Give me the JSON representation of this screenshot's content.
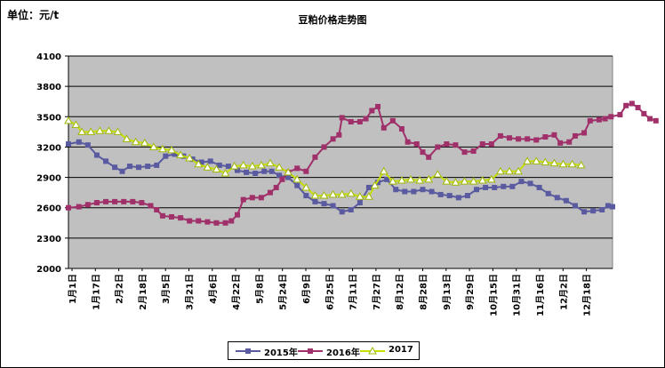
{
  "header": {
    "unit_label": "单位：元/t"
  },
  "chart_data": {
    "type": "line",
    "title": "豆粕价格走势图",
    "xlabel": "",
    "ylabel": "",
    "ylim": [
      2000,
      4100
    ],
    "yticks": [
      2000,
      2300,
      2600,
      2900,
      3200,
      3500,
      3800,
      4100
    ],
    "grid": "horizontal",
    "background": "#c0c0c0",
    "legend_position": "bottom",
    "x_labels": [
      "1月1日",
      "1月17日",
      "2月2日",
      "2月18日",
      "3月5日",
      "3月21日",
      "4月6日",
      "4月22日",
      "5月8日",
      "5月24日",
      "6月9日",
      "6月25日",
      "7月11日",
      "7月27日",
      "8月12日",
      "8月28日",
      "9月13日",
      "9月29日",
      "10月15日",
      "10月31日",
      "11月16日",
      "12月2日",
      "12月18日"
    ],
    "day_range": [
      1,
      365
    ],
    "series": [
      {
        "name": "2015年",
        "color": "#5a5aa0",
        "marker": "square",
        "points": [
          [
            1,
            3230
          ],
          [
            8,
            3250
          ],
          [
            14,
            3220
          ],
          [
            20,
            3120
          ],
          [
            26,
            3060
          ],
          [
            32,
            3000
          ],
          [
            37,
            2960
          ],
          [
            42,
            3010
          ],
          [
            48,
            3000
          ],
          [
            54,
            3010
          ],
          [
            60,
            3020
          ],
          [
            66,
            3110
          ],
          [
            72,
            3130
          ],
          [
            78,
            3110
          ],
          [
            84,
            3080
          ],
          [
            90,
            3050
          ],
          [
            96,
            3060
          ],
          [
            102,
            3020
          ],
          [
            108,
            3010
          ],
          [
            114,
            2970
          ],
          [
            120,
            2950
          ],
          [
            126,
            2940
          ],
          [
            132,
            2960
          ],
          [
            137,
            2960
          ],
          [
            142,
            2920
          ],
          [
            148,
            2900
          ],
          [
            154,
            2820
          ],
          [
            160,
            2720
          ],
          [
            166,
            2660
          ],
          [
            172,
            2640
          ],
          [
            178,
            2620
          ],
          [
            184,
            2560
          ],
          [
            190,
            2580
          ],
          [
            196,
            2650
          ],
          [
            202,
            2800
          ],
          [
            208,
            2850
          ],
          [
            214,
            2880
          ],
          [
            220,
            2780
          ],
          [
            226,
            2760
          ],
          [
            232,
            2760
          ],
          [
            238,
            2780
          ],
          [
            244,
            2760
          ],
          [
            250,
            2730
          ],
          [
            256,
            2720
          ],
          [
            262,
            2700
          ],
          [
            268,
            2720
          ],
          [
            274,
            2780
          ],
          [
            280,
            2800
          ],
          [
            286,
            2800
          ],
          [
            292,
            2810
          ],
          [
            298,
            2810
          ],
          [
            304,
            2860
          ],
          [
            310,
            2840
          ],
          [
            316,
            2800
          ],
          [
            322,
            2740
          ],
          [
            328,
            2700
          ],
          [
            334,
            2670
          ],
          [
            340,
            2620
          ],
          [
            346,
            2560
          ],
          [
            352,
            2570
          ],
          [
            358,
            2580
          ],
          [
            362,
            2620
          ],
          [
            365,
            2610
          ]
        ]
      },
      {
        "name": "2016年",
        "color": "#a0306a",
        "marker": "square",
        "points": [
          [
            1,
            2600
          ],
          [
            8,
            2610
          ],
          [
            14,
            2630
          ],
          [
            20,
            2650
          ],
          [
            26,
            2660
          ],
          [
            32,
            2660
          ],
          [
            38,
            2660
          ],
          [
            44,
            2660
          ],
          [
            50,
            2650
          ],
          [
            56,
            2620
          ],
          [
            60,
            2580
          ],
          [
            64,
            2520
          ],
          [
            70,
            2510
          ],
          [
            76,
            2500
          ],
          [
            82,
            2470
          ],
          [
            88,
            2470
          ],
          [
            94,
            2460
          ],
          [
            100,
            2450
          ],
          [
            106,
            2450
          ],
          [
            110,
            2470
          ],
          [
            114,
            2530
          ],
          [
            118,
            2680
          ],
          [
            124,
            2700
          ],
          [
            130,
            2700
          ],
          [
            136,
            2750
          ],
          [
            140,
            2800
          ],
          [
            144,
            2880
          ],
          [
            148,
            2950
          ],
          [
            154,
            2990
          ],
          [
            160,
            2960
          ],
          [
            166,
            3100
          ],
          [
            172,
            3200
          ],
          [
            178,
            3280
          ],
          [
            182,
            3320
          ],
          [
            184,
            3490
          ],
          [
            190,
            3450
          ],
          [
            196,
            3450
          ],
          [
            200,
            3480
          ],
          [
            204,
            3560
          ],
          [
            208,
            3600
          ],
          [
            212,
            3390
          ],
          [
            218,
            3460
          ],
          [
            224,
            3380
          ],
          [
            228,
            3250
          ],
          [
            234,
            3230
          ],
          [
            238,
            3150
          ],
          [
            242,
            3100
          ],
          [
            248,
            3200
          ],
          [
            254,
            3230
          ],
          [
            260,
            3220
          ],
          [
            266,
            3150
          ],
          [
            272,
            3160
          ],
          [
            278,
            3230
          ],
          [
            284,
            3230
          ],
          [
            290,
            3310
          ],
          [
            296,
            3290
          ],
          [
            302,
            3280
          ],
          [
            308,
            3280
          ],
          [
            314,
            3270
          ],
          [
            320,
            3300
          ],
          [
            326,
            3320
          ],
          [
            330,
            3240
          ],
          [
            336,
            3250
          ],
          [
            340,
            3310
          ],
          [
            346,
            3340
          ],
          [
            350,
            3460
          ],
          [
            356,
            3470
          ],
          [
            360,
            3480
          ],
          [
            364,
            3500
          ],
          [
            370,
            3520
          ],
          [
            374,
            3610
          ],
          [
            378,
            3630
          ],
          [
            382,
            3590
          ],
          [
            386,
            3530
          ],
          [
            390,
            3480
          ],
          [
            394,
            3460
          ]
        ]
      },
      {
        "name": "2017",
        "color": "#c8e000",
        "marker": "triangle",
        "points": [
          [
            1,
            3460
          ],
          [
            6,
            3420
          ],
          [
            10,
            3350
          ],
          [
            16,
            3350
          ],
          [
            22,
            3360
          ],
          [
            28,
            3360
          ],
          [
            34,
            3350
          ],
          [
            40,
            3280
          ],
          [
            46,
            3250
          ],
          [
            52,
            3240
          ],
          [
            58,
            3200
          ],
          [
            64,
            3180
          ],
          [
            70,
            3170
          ],
          [
            76,
            3120
          ],
          [
            82,
            3090
          ],
          [
            88,
            3030
          ],
          [
            94,
            3000
          ],
          [
            100,
            2980
          ],
          [
            106,
            2940
          ],
          [
            112,
            3010
          ],
          [
            118,
            3020
          ],
          [
            124,
            3010
          ],
          [
            130,
            3020
          ],
          [
            136,
            3040
          ],
          [
            142,
            3000
          ],
          [
            148,
            2950
          ],
          [
            154,
            2880
          ],
          [
            160,
            2800
          ],
          [
            166,
            2720
          ],
          [
            172,
            2720
          ],
          [
            178,
            2730
          ],
          [
            184,
            2730
          ],
          [
            190,
            2740
          ],
          [
            196,
            2710
          ],
          [
            202,
            2710
          ],
          [
            206,
            2820
          ],
          [
            212,
            2960
          ],
          [
            218,
            2860
          ],
          [
            224,
            2870
          ],
          [
            230,
            2880
          ],
          [
            236,
            2870
          ],
          [
            242,
            2880
          ],
          [
            248,
            2930
          ],
          [
            254,
            2860
          ],
          [
            260,
            2850
          ],
          [
            266,
            2860
          ],
          [
            272,
            2860
          ],
          [
            278,
            2870
          ],
          [
            284,
            2880
          ],
          [
            290,
            2960
          ],
          [
            296,
            2960
          ],
          [
            302,
            2960
          ],
          [
            308,
            3060
          ],
          [
            314,
            3060
          ],
          [
            320,
            3050
          ],
          [
            326,
            3040
          ],
          [
            332,
            3030
          ],
          [
            338,
            3030
          ],
          [
            344,
            3020
          ]
        ]
      }
    ]
  }
}
